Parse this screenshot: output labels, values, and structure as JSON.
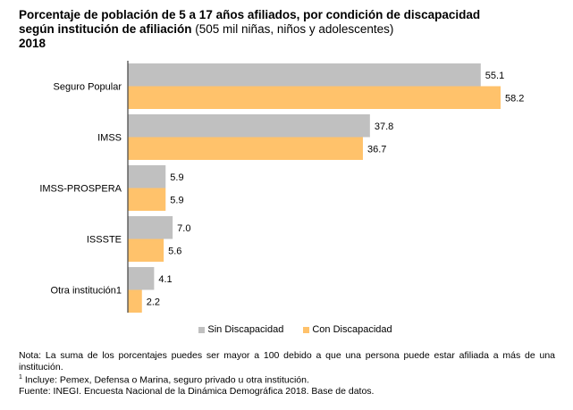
{
  "title": {
    "line1": "Porcentaje de población de 5 a 17 años afiliados, por condición de discapacidad",
    "line2_bold": "según institución de afiliación",
    "line2_light": " (505 mil niñas, niños y adolescentes)",
    "line3": "2018"
  },
  "chart_data": {
    "type": "bar",
    "orientation": "horizontal",
    "title": "Porcentaje de población de 5 a 17 años afiliados, por condición de discapacidad según institución de afiliación (505 mil niñas, niños y adolescentes) 2018",
    "categories": [
      "Seguro Popular",
      "IMSS",
      "IMSS-PROSPERA",
      "ISSSTE",
      "Otra institución1"
    ],
    "series": [
      {
        "name": "Sin Discapacidad",
        "color": "#c0c0c0",
        "values": [
          55.1,
          37.8,
          5.9,
          7.0,
          4.1
        ],
        "labels": [
          "55.1",
          "37.8",
          "5.9",
          "7.0",
          "4.1"
        ]
      },
      {
        "name": "Con Discapacidad",
        "color": "#ffc26b",
        "values": [
          58.2,
          36.7,
          5.9,
          5.6,
          2.2
        ],
        "labels": [
          "58.2",
          "36.7",
          "5.9",
          "5.6",
          "2.2"
        ]
      }
    ],
    "xlabel": "",
    "ylabel": "",
    "xlim": [
      0,
      58.2
    ],
    "grid": false,
    "legend": "bottom"
  },
  "legend": {
    "items": [
      {
        "label": "Sin Discapacidad",
        "color": "#c0c0c0"
      },
      {
        "label": "Con Discapacidad",
        "color": "#ffc26b"
      }
    ]
  },
  "notes": {
    "nota": "Nota: La suma de los porcentajes puedes ser mayor a 100 debido a que una persona puede estar afiliada a más de una institución.",
    "footnote_mark": "1",
    "footnote": " Incluye: Pemex, Defensa o Marina, seguro privado u otra institución.",
    "fuente": "Fuente: INEGI. Encuesta Nacional de la Dinámica Demográfica 2018. Base de datos."
  }
}
